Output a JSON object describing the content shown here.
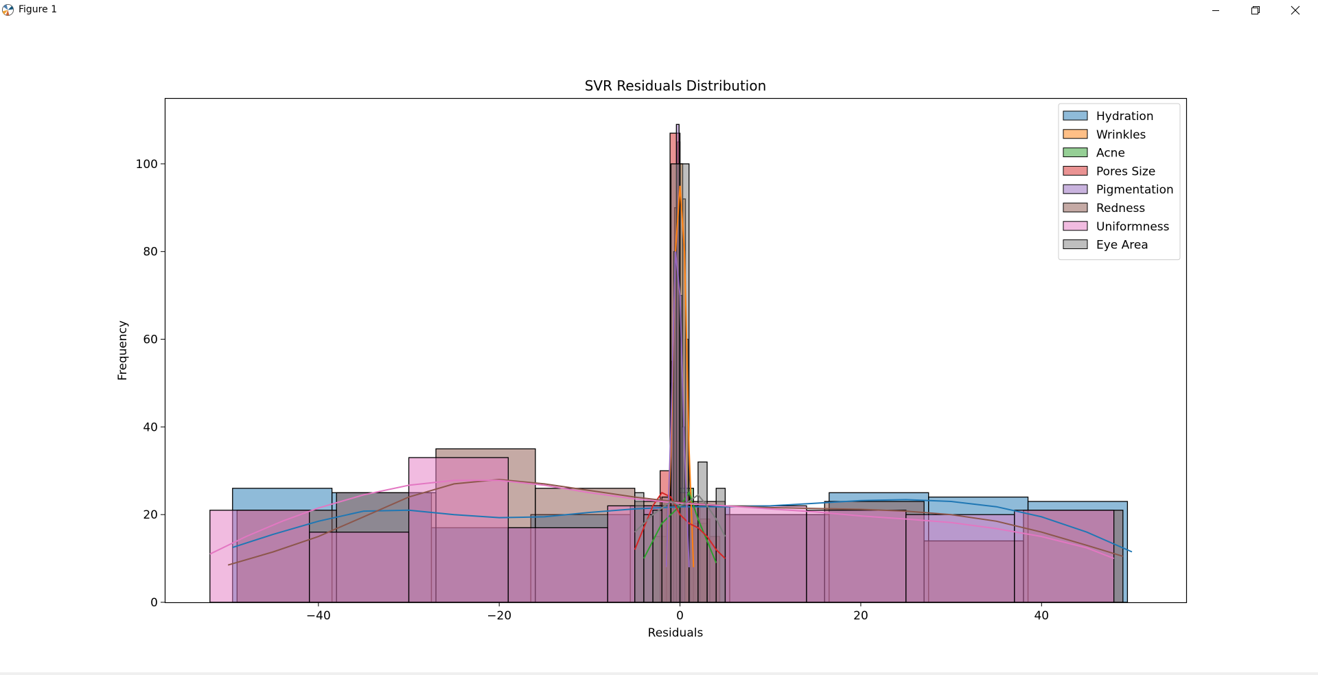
{
  "window": {
    "title": "Figure 1"
  },
  "chart_data": {
    "type": "histogram",
    "title": "SVR Residuals Distribution",
    "xlabel": "Residuals",
    "ylabel": "Frequency",
    "xlim": [
      -57,
      56
    ],
    "ylim": [
      0,
      115
    ],
    "xticks": [
      -40,
      -20,
      0,
      20,
      40
    ],
    "xtick_labels": [
      "−40",
      "−20",
      "0",
      "20",
      "40"
    ],
    "yticks": [
      0,
      20,
      40,
      60,
      80,
      100
    ],
    "ytick_labels": [
      "0",
      "20",
      "40",
      "60",
      "80",
      "100"
    ],
    "grid": false,
    "legend_position": "top-right",
    "series": [
      {
        "name": "Hydration",
        "color": "#1f77b4",
        "bins": [
          [
            -49.5,
            -38.5,
            26
          ],
          [
            -38.5,
            -27.5,
            25
          ],
          [
            -27.5,
            -16.5,
            17
          ],
          [
            -16.5,
            -5.5,
            20
          ],
          [
            -5.5,
            5.5,
            22
          ],
          [
            5.5,
            16.5,
            20
          ],
          [
            16.5,
            27.5,
            25
          ],
          [
            27.5,
            38.5,
            24
          ],
          [
            38.5,
            49.5,
            23
          ]
        ],
        "kde": [
          [
            -49.5,
            12.5
          ],
          [
            -45,
            15.5
          ],
          [
            -40,
            18.5
          ],
          [
            -35,
            20.8
          ],
          [
            -30,
            21
          ],
          [
            -25,
            20
          ],
          [
            -20,
            19.3
          ],
          [
            -15,
            19.5
          ],
          [
            -10,
            20.5
          ],
          [
            -5,
            21.3
          ],
          [
            0,
            21.8
          ],
          [
            5,
            21.8
          ],
          [
            10,
            22
          ],
          [
            15,
            22.6
          ],
          [
            20,
            23.2
          ],
          [
            25,
            23.4
          ],
          [
            30,
            23
          ],
          [
            35,
            21.8
          ],
          [
            40,
            19.5
          ],
          [
            45,
            16
          ],
          [
            50,
            11.5
          ]
        ]
      },
      {
        "name": "Wrinkles",
        "color": "#ff7f0e",
        "bins": [
          [
            -0.9,
            -0.6,
            55
          ],
          [
            -0.6,
            -0.3,
            90
          ],
          [
            -0.3,
            0.0,
            105
          ],
          [
            0.0,
            0.3,
            100
          ],
          [
            0.3,
            0.6,
            92
          ],
          [
            0.6,
            0.9,
            60
          ]
        ],
        "kde": [
          [
            -1.5,
            8
          ],
          [
            -1,
            35
          ],
          [
            -0.5,
            80
          ],
          [
            0,
            95
          ],
          [
            0.5,
            80
          ],
          [
            1,
            35
          ],
          [
            1.5,
            8
          ]
        ]
      },
      {
        "name": "Acne",
        "color": "#2ca02c",
        "bins": [
          [
            -3,
            -1.5,
            15
          ],
          [
            -1.5,
            0,
            22
          ],
          [
            0,
            1.5,
            26
          ],
          [
            1.5,
            3,
            18
          ]
        ],
        "kde": [
          [
            -4,
            10
          ],
          [
            -2,
            18
          ],
          [
            0,
            22
          ],
          [
            1,
            25
          ],
          [
            2,
            19
          ],
          [
            4,
            9
          ]
        ]
      },
      {
        "name": "Pores Size",
        "color": "#d62728",
        "bins": [
          [
            -2.2,
            -1.1,
            30
          ],
          [
            -1.1,
            0.0,
            107
          ],
          [
            0.0,
            1.1,
            25
          ],
          [
            1.1,
            2.2,
            22
          ],
          [
            2.2,
            3.3,
            19
          ],
          [
            3.3,
            4.4,
            15
          ]
        ],
        "kde": [
          [
            -5,
            12
          ],
          [
            -4,
            17
          ],
          [
            -3,
            22
          ],
          [
            -2,
            25
          ],
          [
            -1,
            24
          ],
          [
            0,
            20
          ],
          [
            1,
            18
          ],
          [
            2,
            17
          ],
          [
            3,
            15
          ],
          [
            4,
            12
          ],
          [
            5,
            10
          ]
        ]
      },
      {
        "name": "Pigmentation",
        "color": "#9467bd",
        "bins": [
          [
            -1.0,
            -0.7,
            50
          ],
          [
            -0.7,
            -0.4,
            80
          ],
          [
            -0.4,
            -0.1,
            109
          ],
          [
            -0.1,
            0.2,
            70
          ],
          [
            0.2,
            0.5,
            40
          ]
        ],
        "kde": [
          [
            -1.5,
            8
          ],
          [
            -1,
            40
          ],
          [
            -0.5,
            80
          ],
          [
            0,
            70
          ],
          [
            0.5,
            35
          ],
          [
            1,
            8
          ]
        ]
      },
      {
        "name": "Redness",
        "color": "#8c564b",
        "bins": [
          [
            -49,
            -38,
            21
          ],
          [
            -38,
            -27,
            25
          ],
          [
            -27,
            -16,
            35
          ],
          [
            -16,
            -5,
            26
          ],
          [
            -5,
            5,
            23
          ],
          [
            5,
            16,
            20
          ],
          [
            16,
            27,
            23
          ],
          [
            27,
            38,
            14
          ],
          [
            38,
            49,
            21
          ]
        ],
        "kde": [
          [
            -50,
            8.5
          ],
          [
            -45,
            11.5
          ],
          [
            -40,
            15
          ],
          [
            -35,
            19.5
          ],
          [
            -30,
            24
          ],
          [
            -25,
            27
          ],
          [
            -20,
            28
          ],
          [
            -15,
            27
          ],
          [
            -10,
            25.5
          ],
          [
            -5,
            24
          ],
          [
            0,
            22.8
          ],
          [
            5,
            22
          ],
          [
            10,
            21.6
          ],
          [
            15,
            21.4
          ],
          [
            20,
            21.2
          ],
          [
            25,
            20.8
          ],
          [
            30,
            20
          ],
          [
            35,
            18.5
          ],
          [
            40,
            16
          ],
          [
            45,
            13
          ],
          [
            49,
            10.5
          ]
        ]
      },
      {
        "name": "Uniformness",
        "color": "#e377c2",
        "bins": [
          [
            -52,
            -41,
            21
          ],
          [
            -41,
            -30,
            16
          ],
          [
            -30,
            -19,
            33
          ],
          [
            -19,
            -8,
            17
          ],
          [
            -8,
            3,
            22
          ],
          [
            3,
            14,
            22
          ],
          [
            14,
            25,
            21
          ],
          [
            25,
            37,
            20
          ],
          [
            37,
            48,
            21
          ]
        ],
        "kde": [
          [
            -52,
            11
          ],
          [
            -48,
            15
          ],
          [
            -44,
            18.5
          ],
          [
            -40,
            21.5
          ],
          [
            -35,
            24.5
          ],
          [
            -30,
            26.7
          ],
          [
            -25,
            27.8
          ],
          [
            -20,
            27.8
          ],
          [
            -15,
            26.7
          ],
          [
            -10,
            25
          ],
          [
            -5,
            23.6
          ],
          [
            0,
            22.6
          ],
          [
            5,
            22
          ],
          [
            10,
            21.3
          ],
          [
            15,
            20.6
          ],
          [
            20,
            19.7
          ],
          [
            25,
            19
          ],
          [
            30,
            18.2
          ],
          [
            35,
            16.8
          ],
          [
            40,
            15
          ],
          [
            45,
            12.4
          ],
          [
            48,
            10
          ]
        ]
      },
      {
        "name": "Eye Area",
        "color": "#7f7f7f",
        "bins": [
          [
            -5,
            -4,
            25
          ],
          [
            -4,
            -3,
            20
          ],
          [
            -3,
            -2,
            21
          ],
          [
            -2,
            -1,
            24
          ],
          [
            -1,
            0,
            100
          ],
          [
            0,
            1,
            100
          ],
          [
            1,
            2,
            22
          ],
          [
            2,
            3,
            32
          ],
          [
            3,
            4,
            22
          ],
          [
            4,
            5,
            26
          ]
        ],
        "kde": [
          [
            -5,
            16
          ],
          [
            -3,
            20
          ],
          [
            -1,
            23
          ],
          [
            0,
            22
          ],
          [
            1,
            23
          ],
          [
            2,
            24.5
          ],
          [
            3,
            22
          ],
          [
            4,
            19
          ],
          [
            5,
            15
          ]
        ]
      }
    ]
  }
}
